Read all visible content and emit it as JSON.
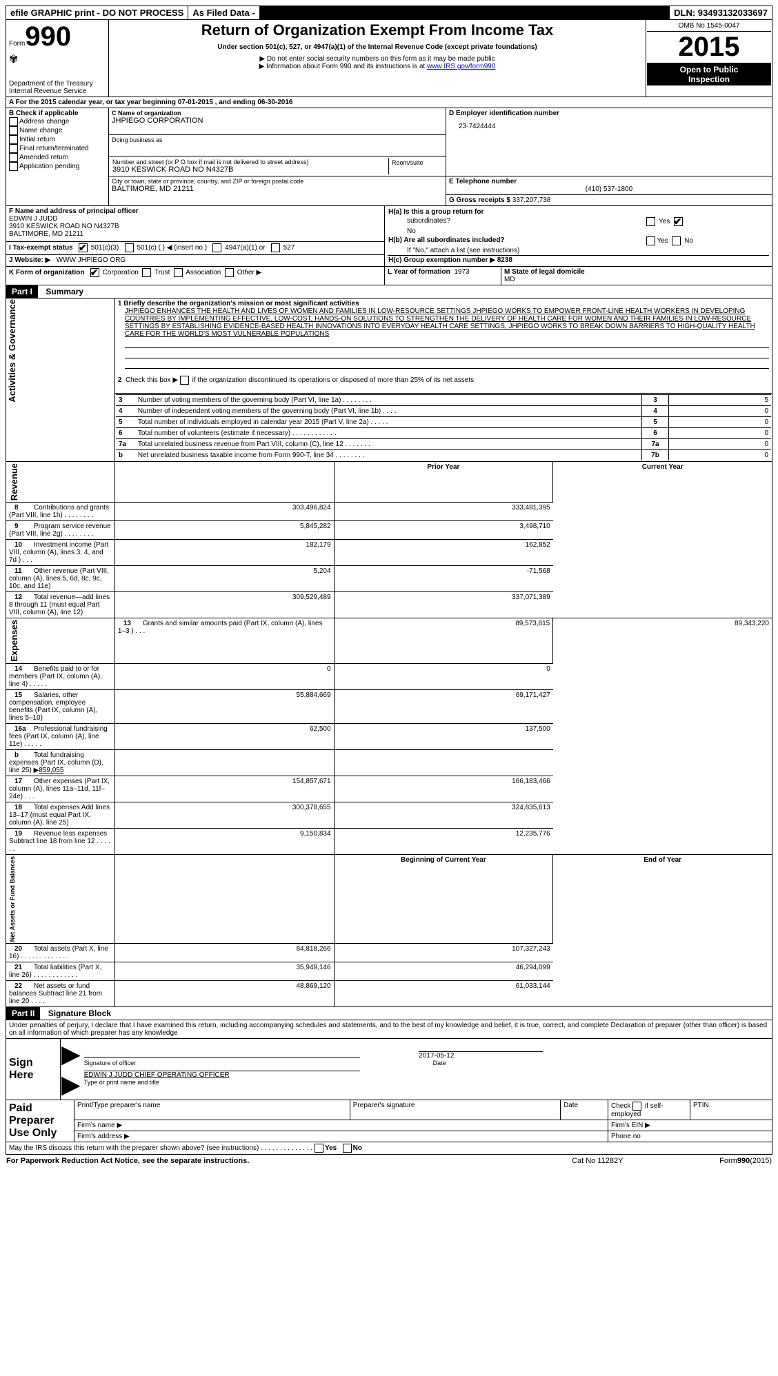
{
  "topbar": {
    "efile": "efile GRAPHIC print - DO NOT PROCESS",
    "asfiled": "As Filed Data -",
    "dln": "DLN: 93493132033697"
  },
  "header": {
    "form_prefix": "Form",
    "form_num": "990",
    "dept1": "Department of the Treasury",
    "dept2": "Internal Revenue Service",
    "title": "Return of Organization Exempt From Income Tax",
    "subtitle": "Under section 501(c), 527, or 4947(a)(1) of the Internal Revenue Code (except private foundations)",
    "note1": "▶ Do not enter social security numbers on this form as it may be made public",
    "note2_pre": "▶ Information about Form 990 and its instructions is at ",
    "note2_link": "www IRS gov/form990",
    "omb": "OMB No 1545-0047",
    "year": "2015",
    "inspect1": "Open to Public",
    "inspect2": "Inspection"
  },
  "period": "A  For the 2015 calendar year, or tax year beginning 07-01-2015   , and ending 06-30-2016",
  "boxB": {
    "label": "B  Check if applicable",
    "items": [
      "Address change",
      "Name change",
      "Initial return",
      "Final return/terminated",
      "Amended return",
      "Application pending"
    ]
  },
  "boxC": {
    "name_label": "C Name of organization",
    "name": "JHPIEGO CORPORATION",
    "dba_label": "Doing business as",
    "street_label": "Number and street (or P O  box if mail is not delivered to street address)",
    "room_label": "Room/suite",
    "street": "3910 KESWICK ROAD NO N4327B",
    "city_label": "City or town, state or province, country, and ZIP or foreign postal code",
    "city": "BALTIMORE, MD  21211"
  },
  "boxD": {
    "label": "D Employer identification number",
    "value": "23-7424444"
  },
  "boxE": {
    "label": "E Telephone number",
    "value": "(410) 537-1800"
  },
  "boxG": {
    "label": "G Gross receipts $",
    "value": "337,207,738"
  },
  "boxF": {
    "label": "F  Name and address of principal officer",
    "line1": "EDWIN J JUDD",
    "line2": "3910 KESWICK ROAD NO N4327B",
    "line3": "BALTIMORE, MD  21211"
  },
  "boxH": {
    "a1": "H(a)  Is this a group return for",
    "a2": "subordinates?",
    "a3": "No",
    "b1": "H(b)  Are all subordinates included?",
    "b2": "If \"No,\" attach a list  (see instructions)",
    "c": "H(c)   Group exemption number ▶  8238"
  },
  "boxI": {
    "label": "I  Tax-exempt status",
    "opts": [
      "501(c)(3)",
      "501(c) (  ) ◀ (insert no )",
      "4947(a)(1) or",
      "527"
    ]
  },
  "boxJ": {
    "label": "J  Website: ▶",
    "value": "WWW JHPIEGO ORG"
  },
  "boxK": {
    "label": "K Form of organization",
    "opts": [
      "Corporation",
      "Trust",
      "Association",
      "Other ▶"
    ]
  },
  "boxL": {
    "label": "L Year of formation",
    "value": "1973"
  },
  "boxM": {
    "label": "M State of legal domicile",
    "value": "MD"
  },
  "partI": {
    "header": "Part I",
    "title": "Summary"
  },
  "summary": {
    "l1_label": "1 Briefly describe the organization's mission or most significant activities",
    "l1_text": "JHPIEGO ENHANCES THE HEALTH AND LIVES OF WOMEN AND FAMILIES IN LOW-RESOURCE SETTINGS  JHPIEGO WORKS TO EMPOWER FRONT-LINE HEALTH WORKERS IN DEVELOPING COUNTRIES BY IMPLEMENTING EFFECTIVE, LOW-COST, HANDS-ON SOLUTIONS TO STRENGTHEN THE DELIVERY OF HEALTH CARE FOR WOMEN AND THEIR FAMILIES IN LOW-RESOURCE SETTINGS  BY ESTABLISHING EVIDENCE-BASED HEALTH INNOVATIONS INTO EVERYDAY HEALTH CARE SETTINGS, JHPIEGO WORKS TO BREAK DOWN BARRIERS TO HIGH-QUALITY HEALTH CARE FOR THE WORLD'S MOST VULNERABLE POPULATIONS",
    "l2": "2  Check this box ▶      if the organization discontinued its operations or disposed of more than 25% of its net assets",
    "rows_top": [
      {
        "n": "3",
        "label": "Number of voting members of the governing body (Part VI, line 1a)   .    .    .    .    .    .    .    .",
        "box": "3",
        "v": "5"
      },
      {
        "n": "4",
        "label": "Number of independent voting members of the governing body (Part VI, line 1b)   .    .    .    .",
        "box": "4",
        "v": "0"
      },
      {
        "n": "5",
        "label": "Total number of individuals employed in calendar year 2015 (Part V, line 2a)   .    .    .    .    .",
        "box": "5",
        "v": "0"
      },
      {
        "n": "6",
        "label": "Total number of volunteers (estimate if necessary)   .    .    .    .    .    .    .    .    .    .    .    .",
        "box": "6",
        "v": "0"
      },
      {
        "n": "7a",
        "label": "Total unrelated business revenue from Part VIII, column (C), line 12   .    .    .    .    .    .    .",
        "box": "7a",
        "v": "0"
      },
      {
        "n": "b",
        "label": "Net unrelated business taxable income from Form 990-T, line 34   .    .    .    .    .    .    .    .",
        "box": "7b",
        "v": "0"
      }
    ],
    "prior_label": "Prior Year",
    "current_label": "Current Year",
    "revenue": [
      {
        "n": "8",
        "label": "Contributions and grants (Part VIII, line 1h)   .    .    .    .    .    .    .    .",
        "p": "303,496,824",
        "c": "333,481,395"
      },
      {
        "n": "9",
        "label": "Program service revenue (Part VIII, line 2g)   .    .    .    .    .    .    .    .",
        "p": "5,845,282",
        "c": "3,498,710"
      },
      {
        "n": "10",
        "label": "Investment income (Part VIII, column (A), lines 3, 4, and 7d )   .    .    .",
        "p": "182,179",
        "c": "162,852"
      },
      {
        "n": "11",
        "label": "Other revenue (Part VIII, column (A), lines 5, 6d, 8c, 9c, 10c, and 11e)",
        "p": "5,204",
        "c": "-71,568"
      },
      {
        "n": "12",
        "label": "Total revenue—add lines 8 through 11 (must equal Part VIII, column (A), line 12)",
        "p": "309,529,489",
        "c": "337,071,389"
      }
    ],
    "expenses": [
      {
        "n": "13",
        "label": "Grants and similar amounts paid (Part IX, column (A), lines 1–3 )   .    .    .",
        "p": "89,573,815",
        "c": "89,343,220"
      },
      {
        "n": "14",
        "label": "Benefits paid to or for members (Part IX, column (A), line 4)   .    .    .    .    .",
        "p": "0",
        "c": "0"
      },
      {
        "n": "15",
        "label": "Salaries, other compensation, employee benefits (Part IX, column (A), lines 5–10)",
        "p": "55,884,669",
        "c": "69,171,427"
      },
      {
        "n": "16a",
        "label": "Professional fundraising fees (Part IX, column (A), line 11e)   .    .    .    .    .",
        "p": "62,500",
        "c": "137,500"
      },
      {
        "n": "b",
        "label": "Total fundraising expenses (Part IX, column (D), line 25) ▶",
        "p": "",
        "c": "",
        "extra": "859,055"
      },
      {
        "n": "17",
        "label": "Other expenses (Part IX, column (A), lines 11a–11d, 11f–24e)   .    .    .",
        "p": "154,857,671",
        "c": "166,183,466"
      },
      {
        "n": "18",
        "label": "Total expenses  Add lines 13–17 (must equal Part IX, column (A), line 25)",
        "p": "300,378,655",
        "c": "324,835,613"
      },
      {
        "n": "19",
        "label": "Revenue less expenses  Subtract line 18 from line 12   .    .    .    .    .    .",
        "p": "9,150,834",
        "c": "12,235,776"
      }
    ],
    "begin_label": "Beginning of Current Year",
    "end_label": "End of Year",
    "netassets": [
      {
        "n": "20",
        "label": "Total assets (Part X, line 16)   .    .    .    .    .    .    .    .    .    .    .    .    .",
        "p": "84,818,266",
        "c": "107,327,243"
      },
      {
        "n": "21",
        "label": "Total liabilities (Part X, line 26)   .    .    .    .    .    .    .    .    .    .    .    .",
        "p": "35,949,146",
        "c": "46,294,099"
      },
      {
        "n": "22",
        "label": "Net assets or fund balances  Subtract line 21 from line 20   .    .    .    .",
        "p": "48,869,120",
        "c": "61,033,144"
      }
    ]
  },
  "sidelabels": {
    "activities": "Activities & Governance",
    "revenue": "Revenue",
    "expenses": "Expenses",
    "net": "Net Assets or Fund Balances"
  },
  "partII": {
    "header": "Part II",
    "title": "Signature Block"
  },
  "perjury": "Under penalties of perjury, I declare that I have examined this return, including accompanying schedules and statements, and to the best of my knowledge and belief, it is true, correct, and complete  Declaration of preparer (other than officer) is based on all information of which preparer has any knowledge",
  "sign": {
    "here": "Sign Here",
    "sig_label": "Signature of officer",
    "date_label": "Date",
    "date": "2017-05-12",
    "name": "EDWIN J JUDD CHIEF OPERATING OFFICER",
    "name_label": "Type or print name and title"
  },
  "preparer": {
    "label": "Paid Preparer Use Only",
    "print_label": "Print/Type preparer's name",
    "sig_label": "Preparer's signature",
    "date_label": "Date",
    "check_label": "Check         if self-employed",
    "ptin": "PTIN",
    "firm_name": "Firm's name   ▶",
    "firm_addr": "Firm's address ▶",
    "firm_ein": "Firm's EIN ▶",
    "phone": "Phone no"
  },
  "footer": {
    "discuss": "May the IRS discuss this return with the preparer shown above? (see instructions)   .    .    .    .    .    .    .    .    .    .    .    .    .    .",
    "yes": "Yes",
    "no": "No",
    "paperwork": "For Paperwork Reduction Act Notice, see the separate instructions.",
    "cat": "Cat No 11282Y",
    "form": "Form990(2015)"
  }
}
